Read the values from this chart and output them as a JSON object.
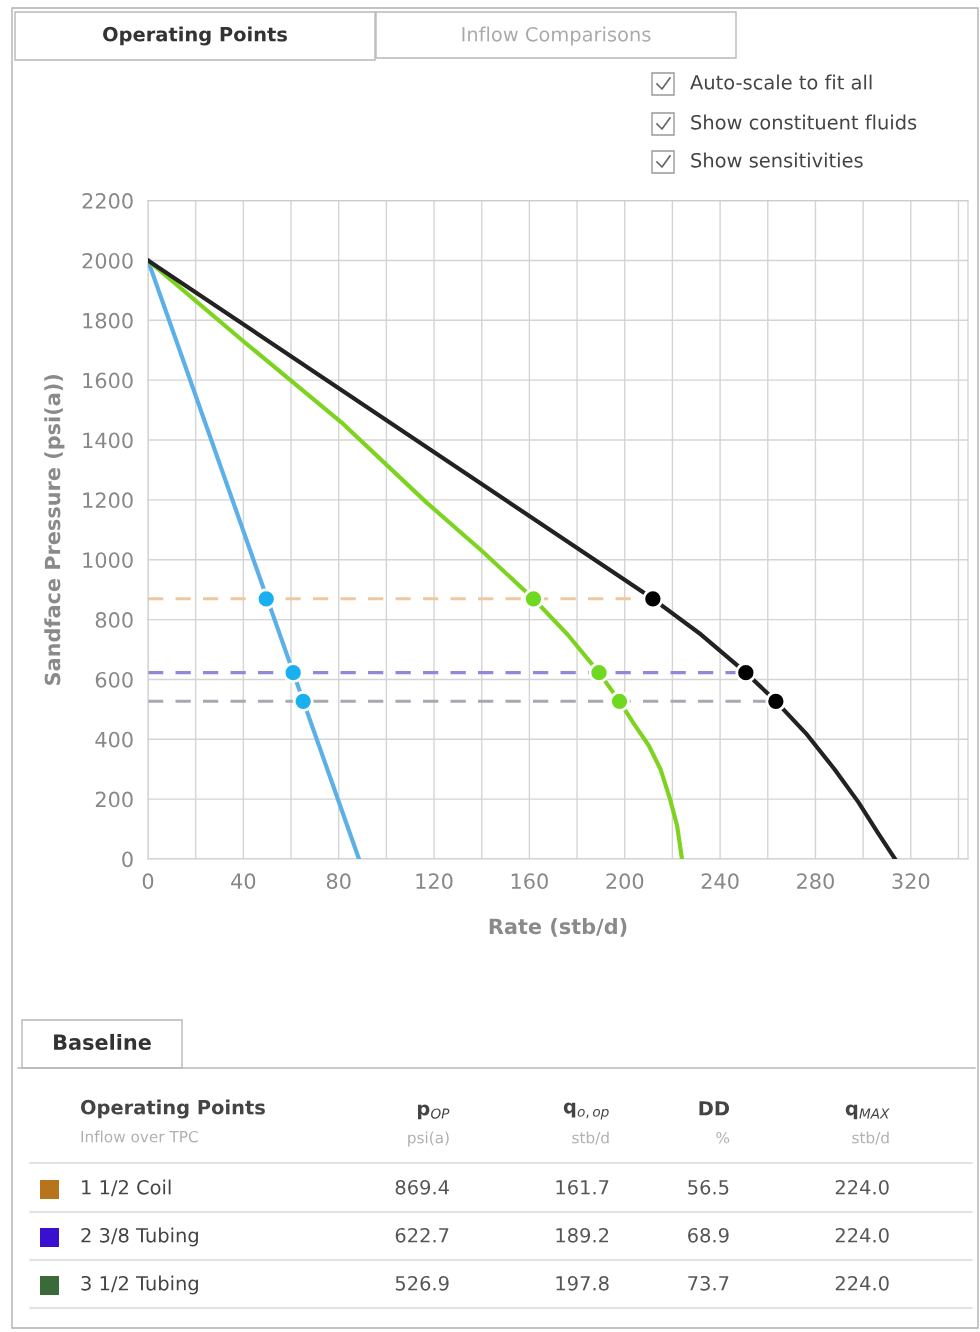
{
  "chart_data": [
    {
      "type": "line",
      "xlabel": "Rate (stb/d)",
      "ylabel": "Sandface Pressure (psi(a))",
      "xlim": [
        0,
        344
      ],
      "ylim": [
        0,
        2200
      ],
      "xticks": [
        0,
        {
          "value": 20,
          "label": null
        },
        40,
        {
          "value": 60,
          "label": null
        },
        80,
        {
          "value": 100,
          "label": null
        },
        120,
        {
          "value": 140,
          "label": null
        },
        160,
        {
          "value": 180,
          "label": null
        },
        200,
        {
          "value": 220,
          "label": null
        },
        240,
        {
          "value": 260,
          "label": null
        },
        280,
        {
          "value": 300,
          "label": null
        },
        320,
        {
          "value": 340,
          "label": null
        }
      ],
      "yticks": [
        0,
        200,
        400,
        600,
        800,
        1000,
        1200,
        1400,
        1600,
        1800,
        2000,
        2200
      ],
      "grid": true,
      "legend": false,
      "annotations": [
        "Operating Points",
        "Inflow Comparisons",
        "Auto-scale to fit all",
        "Show constituent fluids",
        "Show sensitivities"
      ],
      "series": [
        {
          "line_style": "dashed",
          "marker": "none",
          "color": "#f0c8a0",
          "x": [
            0,
            211.8
          ],
          "values": [
            869.4,
            869.4
          ]
        },
        {
          "line_style": "dashed",
          "marker": "none",
          "color": "#9088d8",
          "x": [
            0,
            250.8
          ],
          "values": [
            622.7,
            622.7
          ]
        },
        {
          "line_style": "dashed",
          "marker": "none",
          "color": "#a8a8b0",
          "x": [
            0,
            263.4
          ],
          "values": [
            526.9,
            526.9
          ]
        },
        {
          "line_style": "solid",
          "marker": "none",
          "color": "#5cb0e8",
          "x": [
            0,
            88.5
          ],
          "values": [
            2000,
            0
          ]
        },
        {
          "line_style": "solid",
          "marker": "none",
          "color": "#7ed321",
          "x": [
            0,
            40,
            81,
            117,
            140,
            161.7,
            176,
            189.2,
            197.8,
            204,
            210,
            215,
            219,
            222,
            224
          ],
          "values": [
            2000,
            1730,
            1460,
            1190,
            1030,
            869.4,
            750,
            622.7,
            526.9,
            450,
            380,
            300,
            200,
            110,
            0
          ]
        },
        {
          "line_style": "solid",
          "marker": "none",
          "color": "#222222",
          "x": [
            0,
            211.8,
            232,
            250.8,
            263.4,
            276,
            288,
            298,
            306,
            313.4
          ],
          "values": [
            2000,
            869.4,
            750,
            622.7,
            526.9,
            420,
            300,
            190,
            90,
            0
          ]
        },
        {
          "type": "scatter",
          "marker": "circle",
          "color": "#1ab0f0",
          "x": [
            49.6,
            60.9,
            65.1
          ],
          "values": [
            869.4,
            622.7,
            526.9
          ]
        },
        {
          "type": "scatter",
          "marker": "circle",
          "color": "#6fd820",
          "x": [
            161.7,
            189.2,
            197.8
          ],
          "values": [
            869.4,
            622.7,
            526.9
          ]
        },
        {
          "type": "scatter",
          "marker": "circle",
          "color": "#000000",
          "x": [
            211.8,
            250.8,
            263.4
          ],
          "values": [
            869.4,
            622.7,
            526.9
          ]
        }
      ]
    },
    {
      "type": "other",
      "title": "Operating Points",
      "subtitle": "Inflow over TPC",
      "annotations": [
        "Baseline",
        "psi(a)",
        "stb/d",
        "%",
        "stb/d"
      ],
      "categories": [
        "p$_{OP}$",
        "q$_{o,op}$",
        "DD",
        "q$_{MAX}$"
      ],
      "y_categories": [
        "1 1/2 Coil",
        "2 3/8 Tubing",
        "3 1/2 Tubing"
      ],
      "colors": [
        "#b8741a",
        "#3a10d0",
        "#3a6a3a"
      ],
      "cell_labels": [
        [
          "869.4",
          "161.7",
          "56.5",
          "224.0"
        ],
        [
          "622.7",
          "189.2",
          "68.9",
          "224.0"
        ],
        [
          "526.9",
          "197.8",
          "73.7",
          "224.0"
        ]
      ]
    }
  ]
}
